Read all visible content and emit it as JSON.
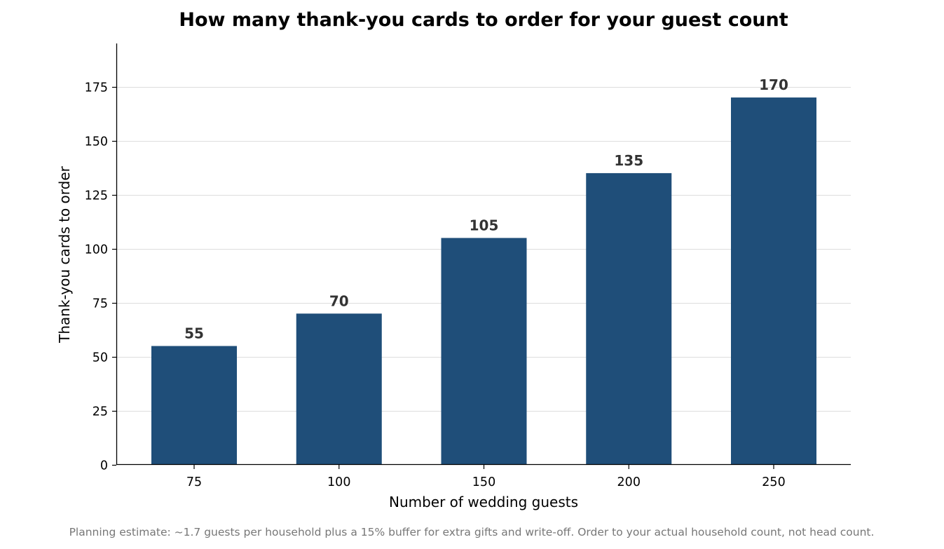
{
  "chart_data": {
    "type": "bar",
    "title": "How many thank-you cards to order for your guest count",
    "xlabel": "Number of wedding guests",
    "ylabel": "Thank-you cards to order",
    "categories": [
      "75",
      "100",
      "150",
      "200",
      "250"
    ],
    "values": [
      55,
      70,
      105,
      135,
      170
    ],
    "ylim": [
      0,
      195
    ],
    "yticks": [
      "0",
      "25",
      "50",
      "75",
      "100",
      "125",
      "150",
      "175"
    ],
    "grid": "horizontal",
    "legend": "none",
    "bar_color": "#1f4e79",
    "data_labels": true
  },
  "footnote": "Planning estimate: ~1.7 guests per household plus a 15% buffer for extra gifts and write-off. Order to your actual household count, not head count."
}
